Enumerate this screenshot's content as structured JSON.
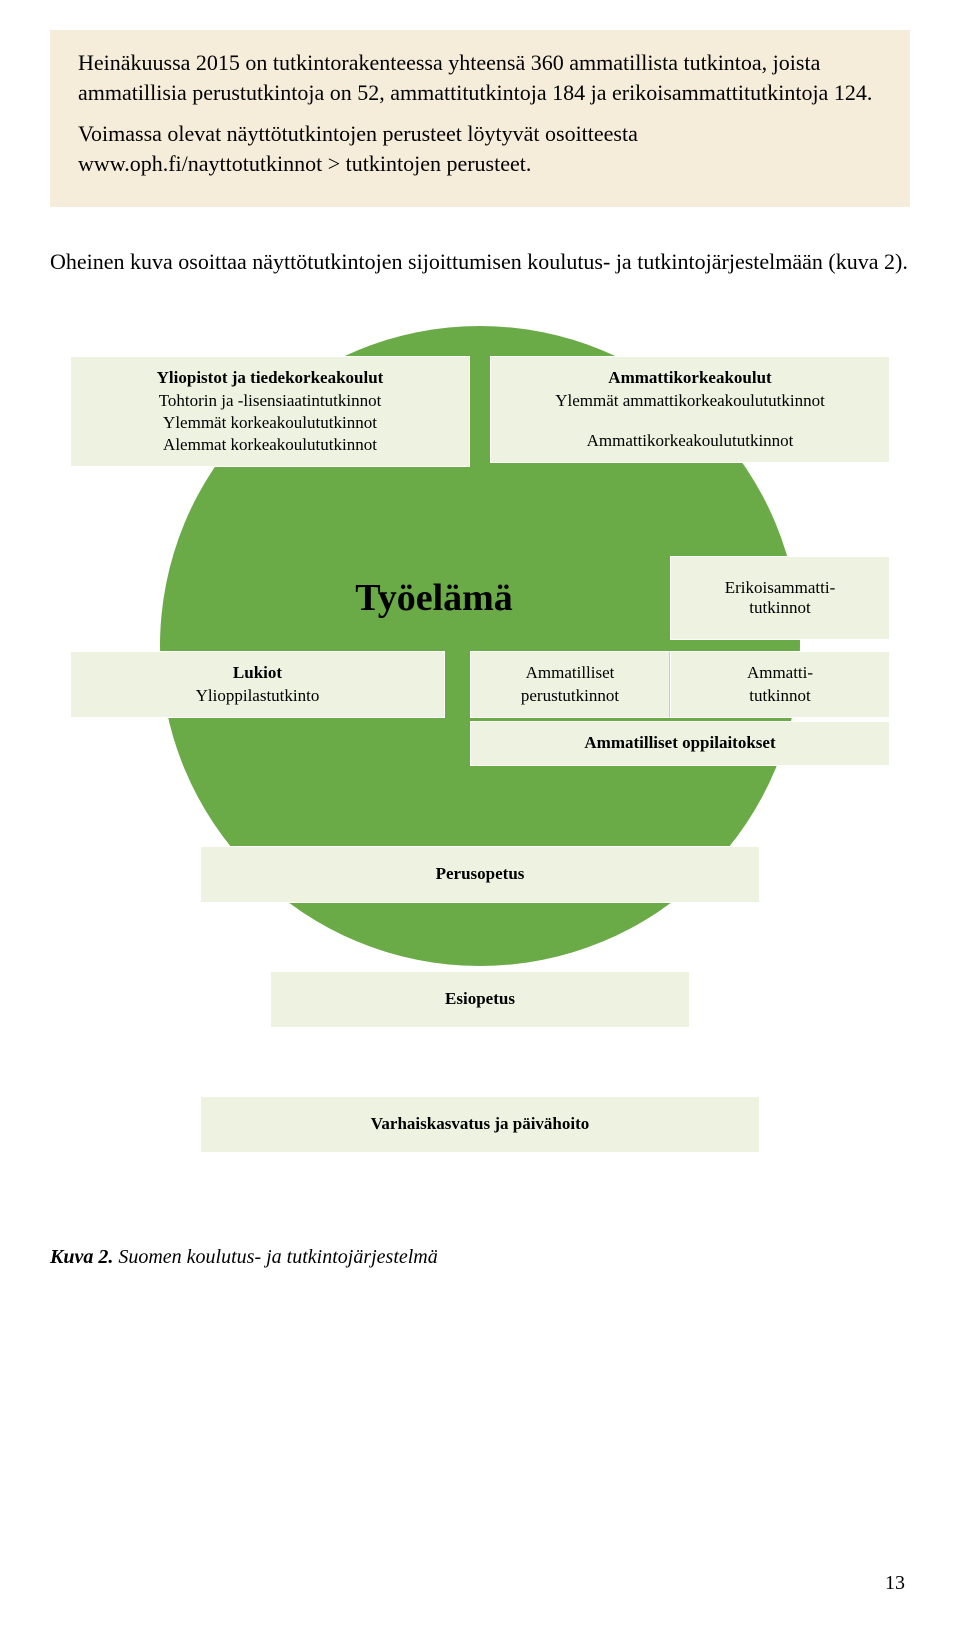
{
  "intro": {
    "p1": "Heinäkuussa 2015 on tutkintorakenteessa yhteensä 360 ammatillista tutkintoa, joista ammatillisia perustutkintoja on 52, ammattitutkintoja 184 ja erikoisammattitutkintoja 124.",
    "p2": "Voimassa olevat näyttötutkintojen perusteet löytyvät osoitteesta www.oph.fi/nayttotutkinnot > tutkintojen perusteet."
  },
  "body": "Oheinen kuva osoittaa näyttötutkintojen sijoittumisen koulutus- ja tutkintojärjestelmään (kuva 2).",
  "colors": {
    "intro_bg": "#f5edda",
    "circle": "#6aaa47",
    "box_bg": "#eef3e1"
  },
  "boxes": {
    "uni_title": "Yliopistot ja tiedekorkeakoulut",
    "uni_l1": "Tohtorin ja -lisensiaatintutkinnot",
    "uni_l2": "Ylemmät korkeakoulututkinnot",
    "uni_l3": "Alemmat korkeakoulututkinnot",
    "amk_title": "Ammattikorkeakoulut",
    "amk_l1": "Ylemmät ammattikorkeakoulututkinnot",
    "amk_l2": "Ammattikorkeakoulututkinnot",
    "tyo": "Työelämä",
    "erikois": "Erikoisammatti-\ntutkinnot",
    "lukio_title": "Lukiot",
    "lukio_l1": "Ylioppilastutkinto",
    "amm_perus": "Ammatilliset perustutkinnot",
    "amm_tut": "Ammatti-\ntutkinnot",
    "amm_opp": "Ammatilliset oppilaitokset",
    "perus": "Perusopetus",
    "esi": "Esiopetus",
    "varh": "Varhaiskasvatus ja päivähoito"
  },
  "caption_label": "Kuva 2.",
  "caption_text": " Suomen koulutus- ja tutkintojärjestelmä",
  "pagenum": "13"
}
